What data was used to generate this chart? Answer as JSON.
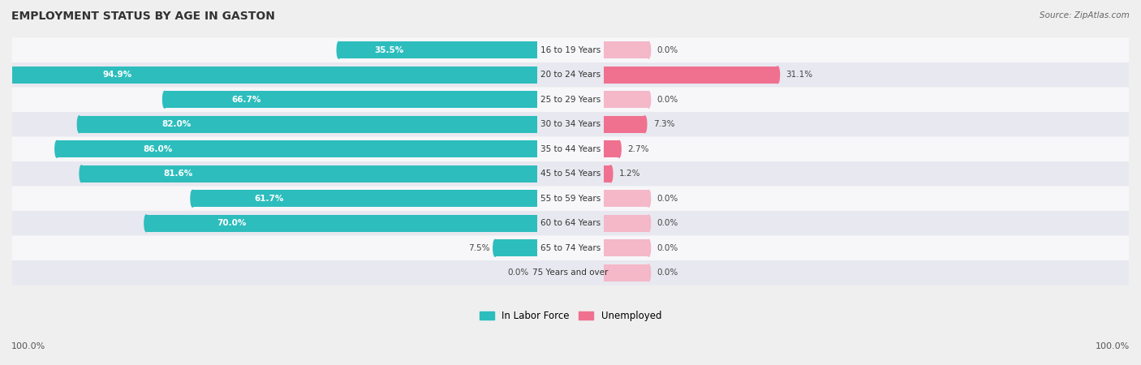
{
  "title": "EMPLOYMENT STATUS BY AGE IN GASTON",
  "source": "Source: ZipAtlas.com",
  "categories": [
    "16 to 19 Years",
    "20 to 24 Years",
    "25 to 29 Years",
    "30 to 34 Years",
    "35 to 44 Years",
    "45 to 54 Years",
    "55 to 59 Years",
    "60 to 64 Years",
    "65 to 74 Years",
    "75 Years and over"
  ],
  "labor_force": [
    35.5,
    94.9,
    66.7,
    82.0,
    86.0,
    81.6,
    61.7,
    70.0,
    7.5,
    0.0
  ],
  "unemployed": [
    0.0,
    31.1,
    0.0,
    7.3,
    2.7,
    1.2,
    0.0,
    0.0,
    0.0,
    0.0
  ],
  "labor_color": "#2dbdbd",
  "unemployed_color": "#f07090",
  "unemployed_color_light": "#f4b8c8",
  "bg_color": "#efefef",
  "row_bg_light": "#f7f7fa",
  "row_bg_dark": "#e8e8f0",
  "axis_label_left": "100.0%",
  "axis_label_right": "100.0%",
  "max_value": 100.0,
  "figsize": [
    14.06,
    4.5
  ],
  "dpi": 100
}
